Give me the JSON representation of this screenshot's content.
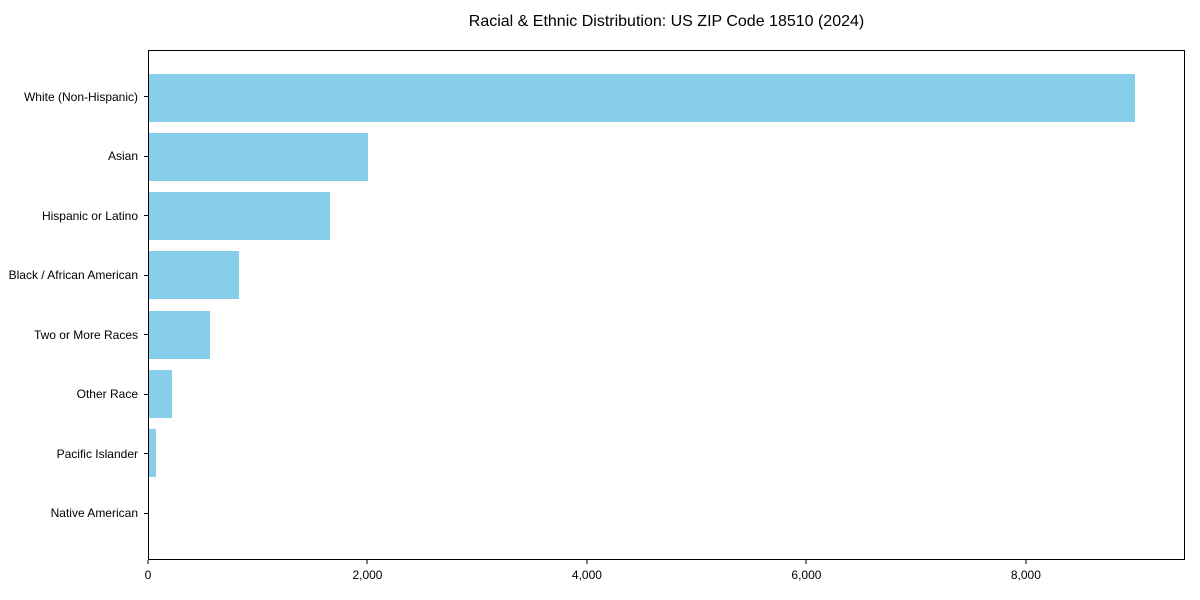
{
  "chart_data": {
    "type": "bar",
    "orientation": "horizontal",
    "title": "Racial & Ethnic Distribution: US ZIP Code 18510 (2024)",
    "xlabel": "",
    "ylabel": "",
    "categories": [
      "White (Non-Hispanic)",
      "Asian",
      "Hispanic or Latino",
      "Black / African American",
      "Two or More Races",
      "Other Race",
      "Pacific Islander",
      "Native American"
    ],
    "values": [
      9000,
      2000,
      1650,
      820,
      560,
      210,
      60,
      0
    ],
    "xlim": [
      0,
      9450
    ],
    "xticks": [
      0,
      2000,
      4000,
      6000,
      8000
    ],
    "xtick_labels": [
      "0",
      "2,000",
      "4,000",
      "6,000",
      "8,000"
    ],
    "bar_color": "#87CEEB",
    "axis_color": "#000000",
    "text_color": "#000000",
    "background_color": "#ffffff",
    "grid": false,
    "legend": null
  }
}
